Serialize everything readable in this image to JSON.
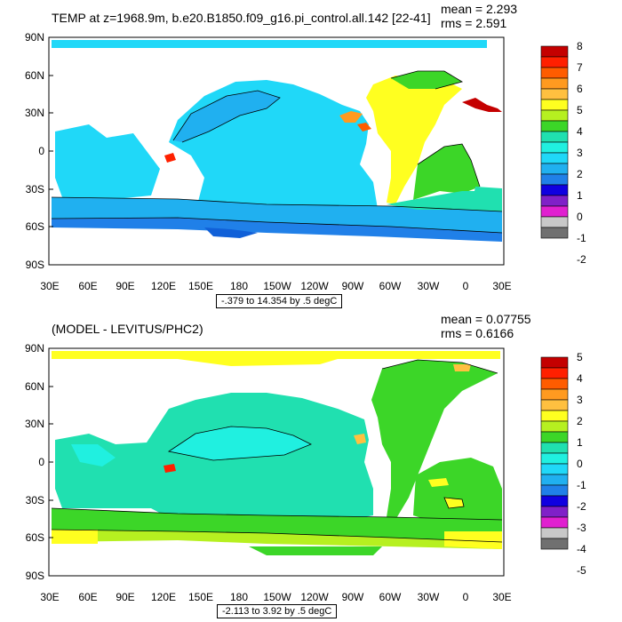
{
  "panels": [
    {
      "title": "TEMP at z=1968.9m, b.e20.B1850.f09_g16.pi_control.all.142 [22-41]",
      "mean": "mean = 2.293",
      "rms": "rms = 2.591",
      "contour_info": "-.379 to 14.354 by .5 degC",
      "lat_labels": [
        "90N",
        "60N",
        "30N",
        "0",
        "30S",
        "60S",
        "90S"
      ],
      "lon_labels": [
        "30E",
        "60E",
        "90E",
        "120E",
        "150E",
        "180",
        "150W",
        "120W",
        "90W",
        "60W",
        "30W",
        "0",
        "30E"
      ],
      "colorbar": {
        "labels": [
          "8",
          "7",
          "6",
          "5",
          "4",
          "3",
          "2",
          "1",
          "0",
          "-1",
          "-2"
        ],
        "colors": [
          "#c40000",
          "#ff2000",
          "#ff5c00",
          "#ff9a20",
          "#ffc040",
          "#ffff20",
          "#b6f020",
          "#3cd628",
          "#20e0b0",
          "#20f0e0",
          "#20d8f8",
          "#20b0f0",
          "#2080e8",
          "#1000e0",
          "#8020c8",
          "#e020d0",
          "#c8c8c8",
          "#707070"
        ]
      }
    },
    {
      "title": "(MODEL - LEVITUS/PHC2)",
      "mean": "mean = 0.07755",
      "rms": "rms = 0.6166",
      "contour_info": "-2.113 to 3.92 by .5 degC",
      "lat_labels": [
        "90N",
        "60N",
        "30N",
        "0",
        "30S",
        "60S",
        "90S"
      ],
      "lon_labels": [
        "30E",
        "60E",
        "90E",
        "120E",
        "150E",
        "180",
        "150W",
        "120W",
        "90W",
        "60W",
        "30W",
        "0",
        "30E"
      ],
      "colorbar": {
        "labels": [
          "5",
          "4",
          "3",
          "2",
          "1",
          "0",
          "-1",
          "-2",
          "-3",
          "-4",
          "-5"
        ],
        "colors": [
          "#c40000",
          "#ff2000",
          "#ff5c00",
          "#ff9a20",
          "#ffc040",
          "#ffff20",
          "#b6f020",
          "#3cd628",
          "#20e0b0",
          "#20f0e0",
          "#20d8f8",
          "#20b0f0",
          "#2080e8",
          "#1000e0",
          "#8020c8",
          "#e020d0",
          "#c8c8c8",
          "#707070"
        ]
      }
    }
  ]
}
